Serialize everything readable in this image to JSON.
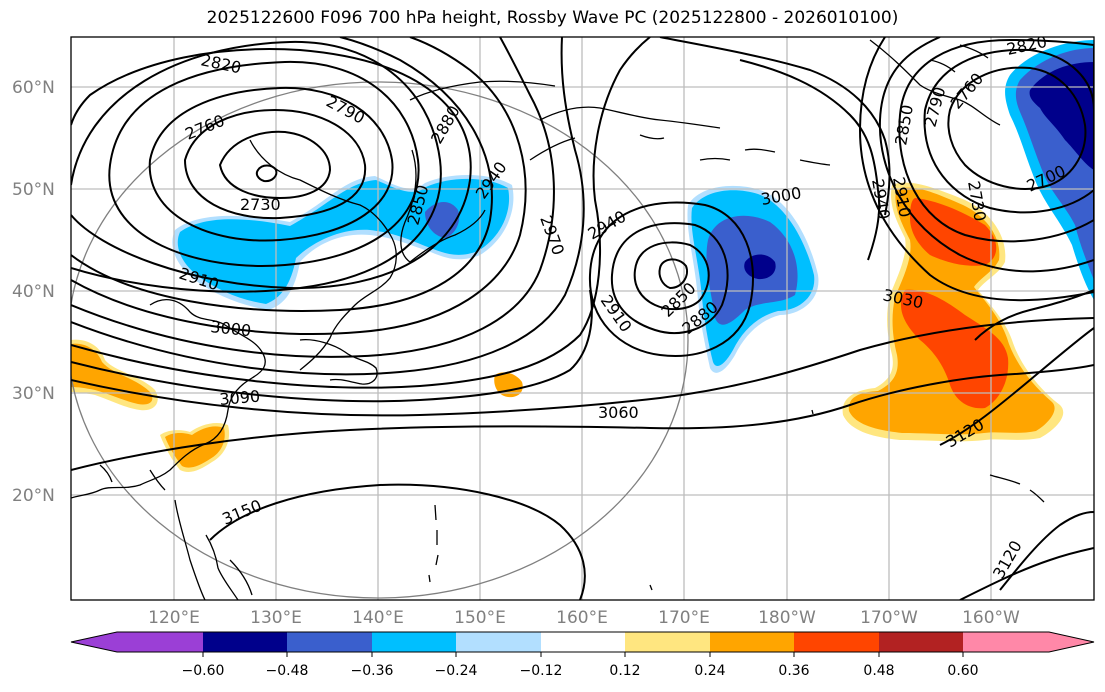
{
  "title": "2025122600 F096 700 hPa height, Rossby Wave PC (2025122800 - 2026010100)",
  "lat_labels": [
    "60°N",
    "50°N",
    "40°N",
    "30°N",
    "20°N"
  ],
  "lon_labels": [
    "120°E",
    "130°E",
    "140°E",
    "150°E",
    "160°E",
    "170°E",
    "180°W",
    "170°W",
    "160°W"
  ],
  "contour_labels": [
    "2820",
    "2790",
    "2760",
    "2730",
    "2880",
    "2940",
    "2850",
    "2910",
    "3000",
    "2970",
    "2940",
    "3000",
    "2910",
    "2850",
    "2880",
    "3090",
    "3060",
    "3030",
    "3150",
    "3120",
    "3120",
    "2820",
    "2760",
    "2790",
    "2850",
    "2730",
    "2700",
    "2910",
    "2940"
  ],
  "colorbar": {
    "ticks": [
      "−0.60",
      "−0.48",
      "−0.36",
      "−0.24",
      "−0.12",
      "0.12",
      "0.24",
      "0.36",
      "0.48",
      "0.60"
    ],
    "colors": [
      "#9b3fd6",
      "#00008b",
      "#3a5fcd",
      "#00bfff",
      "#b2dfff",
      "#ffffff",
      "#ffe680",
      "#ffa500",
      "#ff4500",
      "#b22222",
      "#ff88a8"
    ]
  },
  "shading_colors": {
    "neg_strong": "#00008b",
    "neg_mid": "#3a5fcd",
    "neg_light": "#00bfff",
    "neg_pale": "#b2dfff",
    "pos_pale": "#ffe680",
    "pos_light": "#ffa500",
    "pos_mid": "#ff4500"
  }
}
